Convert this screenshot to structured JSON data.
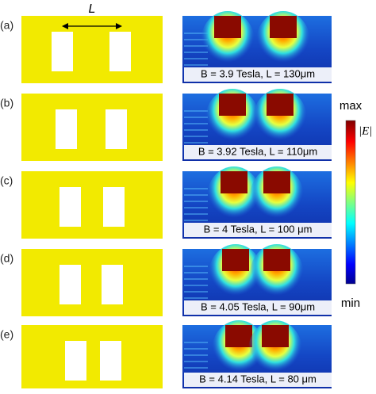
{
  "figure": {
    "length_label": "L",
    "colorbar": {
      "max_label": "max",
      "min_label": "min",
      "quantity": "|E|"
    },
    "panels": [
      {
        "label": "(a)",
        "caption": "B = 3.9 Tesla, L = 130μm"
      },
      {
        "label": "(b)",
        "caption": "B = 3.92 Tesla, L = 110μm"
      },
      {
        "label": "(c)",
        "caption": "B = 4 Tesla, L = 100 μm"
      },
      {
        "label": "(d)",
        "caption": "B = 4.05 Tesla, L = 90μm"
      },
      {
        "label": "(e)",
        "caption": "B = 4.14 Tesla, L = 80 μm"
      }
    ]
  }
}
